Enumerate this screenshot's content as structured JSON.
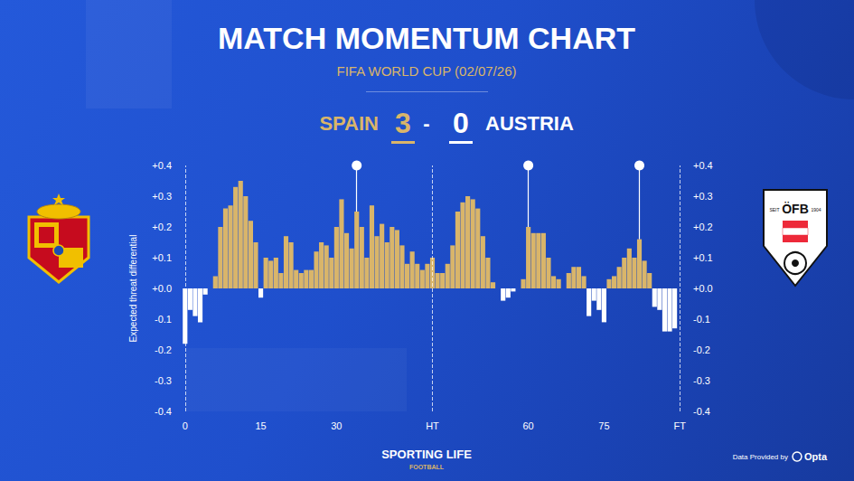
{
  "chart_data": {
    "type": "bar",
    "title": "MATCH MOMENTUM CHART",
    "subtitle": "FIFA WORLD CUP (02/07/26)",
    "score": {
      "home_team": "SPAIN",
      "home_goals": 3,
      "separator": "-",
      "away_goals": 0,
      "away_team": "AUSTRIA"
    },
    "y_label": "Expected threat differential",
    "categories": [
      "0",
      null,
      null,
      null,
      null,
      null,
      null,
      null,
      null,
      null,
      null,
      null,
      null,
      null,
      null,
      "15",
      null,
      null,
      null,
      null,
      null,
      null,
      null,
      null,
      null,
      null,
      null,
      null,
      null,
      null,
      "30",
      null,
      null,
      null,
      null,
      null,
      null,
      null,
      null,
      null,
      null,
      null,
      null,
      null,
      null,
      null,
      null,
      null,
      null,
      "HT",
      null,
      null,
      null,
      null,
      null,
      null,
      null,
      null,
      null,
      null,
      null,
      null,
      null,
      null,
      null,
      null,
      null,
      null,
      "60",
      null,
      null,
      null,
      null,
      null,
      null,
      null,
      null,
      null,
      null,
      null,
      null,
      null,
      null,
      "75",
      null,
      null,
      null,
      null,
      null,
      null,
      null,
      null,
      null,
      null,
      null,
      null,
      null,
      null,
      "FT"
    ],
    "series": [
      {
        "color": "#d9b56a",
        "values": [
          null,
          null,
          null,
          null,
          null,
          0,
          0.04,
          0.2,
          0.26,
          0.27,
          0.33,
          0.35,
          0.3,
          0.22,
          0.15,
          null,
          0.1,
          0.09,
          0.1,
          0.05,
          0.17,
          0.15,
          0.06,
          0.05,
          0.06,
          0.06,
          0.12,
          0.15,
          0.14,
          0.1,
          0.2,
          0.29,
          0.18,
          0.13,
          0.25,
          0.2,
          0.1,
          0.27,
          0.17,
          0.21,
          0.15,
          0.2,
          0.19,
          0.14,
          0.08,
          0.12,
          0.08,
          0.06,
          0.08,
          0.1,
          0.05,
          0.05,
          0.08,
          0.14,
          0.25,
          0.28,
          0.3,
          0.29,
          0.26,
          0.17,
          0.1,
          0.02,
          0,
          null,
          null,
          null,
          0,
          0.03,
          0.2,
          0.18,
          0.18,
          0.18,
          0.1,
          0.04,
          0.03,
          0,
          0.05,
          0.07,
          0.07,
          0.04,
          null,
          null,
          null,
          null,
          0.03,
          0.04,
          0.07,
          0.1,
          0.13,
          0.1,
          0.16,
          0.09,
          0.05,
          null,
          null,
          null,
          null,
          null,
          0
        ]
      },
      {
        "color": "#ffffff",
        "values": [
          -0.18,
          -0.07,
          -0.09,
          -0.11,
          -0.02,
          null,
          null,
          null,
          null,
          null,
          null,
          null,
          null,
          null,
          null,
          -0.03,
          null,
          null,
          null,
          null,
          null,
          null,
          null,
          null,
          null,
          null,
          null,
          null,
          null,
          null,
          null,
          null,
          null,
          null,
          null,
          null,
          null,
          null,
          null,
          null,
          null,
          null,
          null,
          null,
          null,
          null,
          null,
          null,
          null,
          null,
          null,
          null,
          null,
          null,
          null,
          null,
          null,
          null,
          null,
          null,
          null,
          null,
          null,
          -0.04,
          -0.03,
          -0.01,
          null,
          null,
          null,
          null,
          null,
          null,
          null,
          null,
          null,
          null,
          null,
          null,
          null,
          null,
          -0.09,
          -0.04,
          -0.07,
          -0.11,
          null,
          null,
          null,
          null,
          null,
          null,
          null,
          null,
          null,
          -0.06,
          -0.07,
          -0.14,
          -0.14,
          -0.13,
          null
        ]
      }
    ],
    "ylim": [
      -0.4,
      0.4
    ],
    "yticks": [
      {
        "value": -0.4,
        "label": "-0.4"
      },
      {
        "value": -0.3,
        "label": "-0.3"
      },
      {
        "value": -0.2,
        "label": "-0.2"
      },
      {
        "value": -0.1,
        "label": "-0.1"
      },
      {
        "value": 0,
        "label": "+0.0"
      },
      {
        "value": 0.1,
        "label": "+0.1"
      },
      {
        "value": 0.2,
        "label": "+0.2"
      },
      {
        "value": 0.3,
        "label": "+0.3"
      },
      {
        "value": 0.4,
        "label": "+0.4"
      }
    ],
    "grid": false,
    "goal_markers": [
      34,
      68,
      90
    ],
    "footer": {
      "brand": "SPORTING LIFE",
      "section": "FOOTBALL",
      "credit": "Data Provided by",
      "provider": "Opta"
    },
    "badge_texts": {
      "austria": [
        "SEIT",
        "ÖFB",
        "1904"
      ]
    }
  }
}
